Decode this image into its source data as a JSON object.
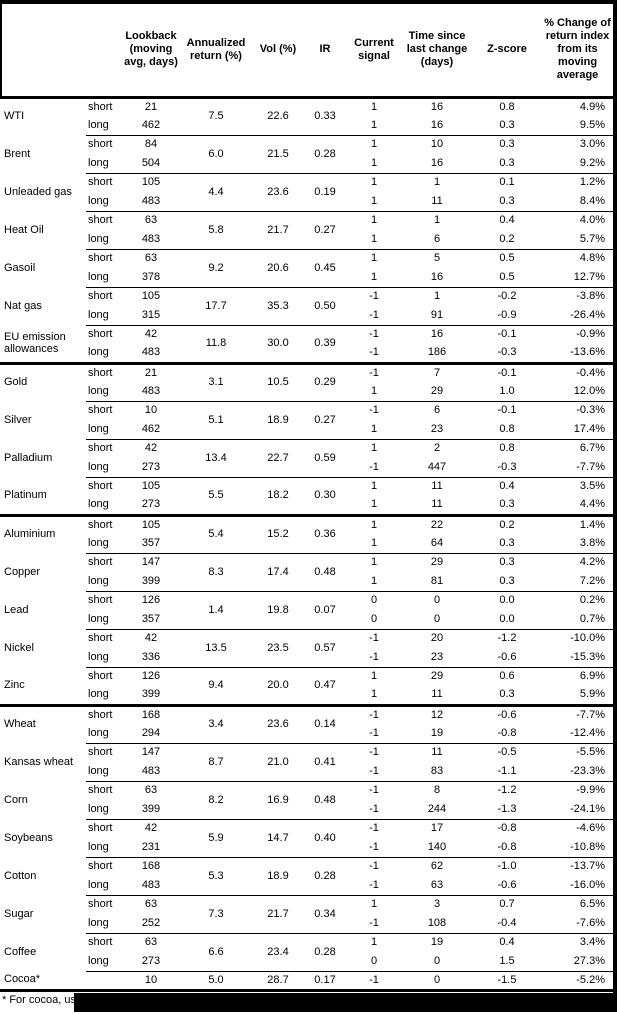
{
  "table": {
    "columns": {
      "name": "",
      "horizon": "",
      "lookback": "Lookback (moving avg, days)",
      "annualized": "Annualized return (%)",
      "vol": "Vol (%)",
      "ir": "IR",
      "signal": "Current signal",
      "time": "Time since last change (days)",
      "zscore": "Z-score",
      "pct": "% Change of return index from its moving average"
    },
    "horizon_labels": {
      "short": "short",
      "long": "long"
    },
    "rows": [
      {
        "name": "WTI",
        "new_section": false,
        "annualized": "7.5",
        "vol": "22.6",
        "ir": "0.33",
        "short": {
          "lookback": "21",
          "signal": "1",
          "time": "16",
          "zscore": "0.8",
          "pct": "4.9%"
        },
        "long": {
          "lookback": "462",
          "signal": "1",
          "time": "16",
          "zscore": "0.3",
          "pct": "9.5%"
        }
      },
      {
        "name": "Brent",
        "new_section": false,
        "annualized": "6.0",
        "vol": "21.5",
        "ir": "0.28",
        "short": {
          "lookback": "84",
          "signal": "1",
          "time": "10",
          "zscore": "0.3",
          "pct": "3.0%"
        },
        "long": {
          "lookback": "504",
          "signal": "1",
          "time": "16",
          "zscore": "0.3",
          "pct": "9.2%"
        }
      },
      {
        "name": "Unleaded gas",
        "new_section": false,
        "annualized": "4.4",
        "vol": "23.6",
        "ir": "0.19",
        "short": {
          "lookback": "105",
          "signal": "1",
          "time": "1",
          "zscore": "0.1",
          "pct": "1.2%"
        },
        "long": {
          "lookback": "483",
          "signal": "1",
          "time": "11",
          "zscore": "0.3",
          "pct": "8.4%"
        }
      },
      {
        "name": "Heat Oil",
        "new_section": false,
        "annualized": "5.8",
        "vol": "21.7",
        "ir": "0.27",
        "short": {
          "lookback": "63",
          "signal": "1",
          "time": "1",
          "zscore": "0.4",
          "pct": "4.0%"
        },
        "long": {
          "lookback": "483",
          "signal": "1",
          "time": "6",
          "zscore": "0.2",
          "pct": "5.7%"
        }
      },
      {
        "name": "Gasoil",
        "new_section": false,
        "annualized": "9.2",
        "vol": "20.6",
        "ir": "0.45",
        "short": {
          "lookback": "63",
          "signal": "1",
          "time": "5",
          "zscore": "0.5",
          "pct": "4.8%"
        },
        "long": {
          "lookback": "378",
          "signal": "1",
          "time": "16",
          "zscore": "0.5",
          "pct": "12.7%"
        }
      },
      {
        "name": "Nat gas",
        "new_section": false,
        "annualized": "17.7",
        "vol": "35.3",
        "ir": "0.50",
        "short": {
          "lookback": "105",
          "signal": "-1",
          "time": "1",
          "zscore": "-0.2",
          "pct": "-3.8%"
        },
        "long": {
          "lookback": "315",
          "signal": "-1",
          "time": "91",
          "zscore": "-0.9",
          "pct": "-26.4%"
        }
      },
      {
        "name": "EU emission allowances",
        "new_section": false,
        "annualized": "11.8",
        "vol": "30.0",
        "ir": "0.39",
        "short": {
          "lookback": "42",
          "signal": "-1",
          "time": "16",
          "zscore": "-0.1",
          "pct": "-0.9%"
        },
        "long": {
          "lookback": "483",
          "signal": "-1",
          "time": "186",
          "zscore": "-0.3",
          "pct": "-13.6%"
        }
      },
      {
        "name": "Gold",
        "new_section": true,
        "annualized": "3.1",
        "vol": "10.5",
        "ir": "0.29",
        "short": {
          "lookback": "21",
          "signal": "-1",
          "time": "7",
          "zscore": "-0.1",
          "pct": "-0.4%"
        },
        "long": {
          "lookback": "483",
          "signal": "1",
          "time": "29",
          "zscore": "1.0",
          "pct": "12.0%"
        }
      },
      {
        "name": "Silver",
        "new_section": false,
        "annualized": "5.1",
        "vol": "18.9",
        "ir": "0.27",
        "short": {
          "lookback": "10",
          "signal": "-1",
          "time": "6",
          "zscore": "-0.1",
          "pct": "-0.3%"
        },
        "long": {
          "lookback": "462",
          "signal": "1",
          "time": "23",
          "zscore": "0.8",
          "pct": "17.4%"
        }
      },
      {
        "name": "Palladium",
        "new_section": false,
        "annualized": "13.4",
        "vol": "22.7",
        "ir": "0.59",
        "short": {
          "lookback": "42",
          "signal": "1",
          "time": "2",
          "zscore": "0.8",
          "pct": "6.7%"
        },
        "long": {
          "lookback": "273",
          "signal": "-1",
          "time": "447",
          "zscore": "-0.3",
          "pct": "-7.7%"
        }
      },
      {
        "name": "Platinum",
        "new_section": false,
        "annualized": "5.5",
        "vol": "18.2",
        "ir": "0.30",
        "short": {
          "lookback": "105",
          "signal": "1",
          "time": "11",
          "zscore": "0.4",
          "pct": "3.5%"
        },
        "long": {
          "lookback": "273",
          "signal": "1",
          "time": "11",
          "zscore": "0.3",
          "pct": "4.4%"
        }
      },
      {
        "name": "Aluminium",
        "new_section": true,
        "annualized": "5.4",
        "vol": "15.2",
        "ir": "0.36",
        "short": {
          "lookback": "105",
          "signal": "1",
          "time": "22",
          "zscore": "0.2",
          "pct": "1.4%"
        },
        "long": {
          "lookback": "357",
          "signal": "1",
          "time": "64",
          "zscore": "0.3",
          "pct": "3.8%"
        }
      },
      {
        "name": "Copper",
        "new_section": false,
        "annualized": "8.3",
        "vol": "17.4",
        "ir": "0.48",
        "short": {
          "lookback": "147",
          "signal": "1",
          "time": "29",
          "zscore": "0.3",
          "pct": "4.2%"
        },
        "long": {
          "lookback": "399",
          "signal": "1",
          "time": "81",
          "zscore": "0.3",
          "pct": "7.2%"
        }
      },
      {
        "name": "Lead",
        "new_section": false,
        "annualized": "1.4",
        "vol": "19.8",
        "ir": "0.07",
        "short": {
          "lookback": "126",
          "signal": "0",
          "time": "0",
          "zscore": "0.0",
          "pct": "0.2%"
        },
        "long": {
          "lookback": "357",
          "signal": "0",
          "time": "0",
          "zscore": "0.0",
          "pct": "0.7%"
        }
      },
      {
        "name": "Nickel",
        "new_section": false,
        "annualized": "13.5",
        "vol": "23.5",
        "ir": "0.57",
        "short": {
          "lookback": "42",
          "signal": "-1",
          "time": "20",
          "zscore": "-1.2",
          "pct": "-10.0%"
        },
        "long": {
          "lookback": "336",
          "signal": "-1",
          "time": "23",
          "zscore": "-0.6",
          "pct": "-15.3%"
        }
      },
      {
        "name": "Zinc",
        "new_section": false,
        "annualized": "9.4",
        "vol": "20.0",
        "ir": "0.47",
        "short": {
          "lookback": "126",
          "signal": "1",
          "time": "29",
          "zscore": "0.6",
          "pct": "6.9%"
        },
        "long": {
          "lookback": "399",
          "signal": "1",
          "time": "11",
          "zscore": "0.3",
          "pct": "5.9%"
        }
      },
      {
        "name": "Wheat",
        "new_section": true,
        "annualized": "3.4",
        "vol": "23.6",
        "ir": "0.14",
        "short": {
          "lookback": "168",
          "signal": "-1",
          "time": "12",
          "zscore": "-0.6",
          "pct": "-7.7%"
        },
        "long": {
          "lookback": "294",
          "signal": "-1",
          "time": "19",
          "zscore": "-0.8",
          "pct": "-12.4%"
        }
      },
      {
        "name": "Kansas wheat",
        "new_section": false,
        "annualized": "8.7",
        "vol": "21.0",
        "ir": "0.41",
        "short": {
          "lookback": "147",
          "signal": "-1",
          "time": "11",
          "zscore": "-0.5",
          "pct": "-5.5%"
        },
        "long": {
          "lookback": "483",
          "signal": "-1",
          "time": "83",
          "zscore": "-1.1",
          "pct": "-23.3%"
        }
      },
      {
        "name": "Corn",
        "new_section": false,
        "annualized": "8.2",
        "vol": "16.9",
        "ir": "0.48",
        "short": {
          "lookback": "63",
          "signal": "-1",
          "time": "8",
          "zscore": "-1.2",
          "pct": "-9.9%"
        },
        "long": {
          "lookback": "399",
          "signal": "-1",
          "time": "244",
          "zscore": "-1.3",
          "pct": "-24.1%"
        }
      },
      {
        "name": "Soybeans",
        "new_section": false,
        "annualized": "5.9",
        "vol": "14.7",
        "ir": "0.40",
        "short": {
          "lookback": "42",
          "signal": "-1",
          "time": "17",
          "zscore": "-0.8",
          "pct": "-4.6%"
        },
        "long": {
          "lookback": "231",
          "signal": "-1",
          "time": "140",
          "zscore": "-0.8",
          "pct": "-10.8%"
        }
      },
      {
        "name": "Cotton",
        "new_section": false,
        "annualized": "5.3",
        "vol": "18.9",
        "ir": "0.28",
        "short": {
          "lookback": "168",
          "signal": "-1",
          "time": "62",
          "zscore": "-1.0",
          "pct": "-13.7%"
        },
        "long": {
          "lookback": "483",
          "signal": "-1",
          "time": "63",
          "zscore": "-0.6",
          "pct": "-16.0%"
        }
      },
      {
        "name": "Sugar",
        "new_section": false,
        "annualized": "7.3",
        "vol": "21.7",
        "ir": "0.34",
        "short": {
          "lookback": "63",
          "signal": "1",
          "time": "3",
          "zscore": "0.7",
          "pct": "6.5%"
        },
        "long": {
          "lookback": "252",
          "signal": "-1",
          "time": "108",
          "zscore": "-0.4",
          "pct": "-7.6%"
        }
      },
      {
        "name": "Coffee",
        "new_section": false,
        "annualized": "6.6",
        "vol": "23.4",
        "ir": "0.28",
        "short": {
          "lookback": "63",
          "signal": "1",
          "time": "19",
          "zscore": "0.4",
          "pct": "3.4%"
        },
        "long": {
          "lookback": "273",
          "signal": "0",
          "time": "0",
          "zscore": "1.5",
          "pct": "27.3%"
        }
      },
      {
        "name": "Cocoa*",
        "new_section": false,
        "single": true,
        "annualized": "5.0",
        "vol": "28.7",
        "ir": "0.17",
        "short": {
          "lookback": "10",
          "signal": "-1",
          "time": "0",
          "zscore": "-1.5",
          "pct": "-5.2%"
        }
      }
    ]
  },
  "footnote": {
    "visible_text": "* For cocoa, uses c",
    "redacted": true
  }
}
